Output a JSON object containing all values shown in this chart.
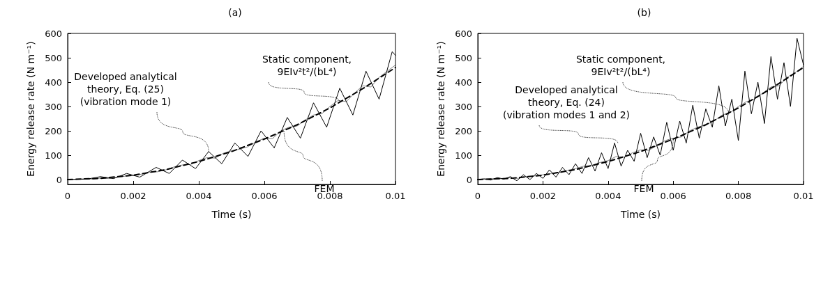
{
  "chart_data": [
    {
      "type": "line",
      "title": "(a)",
      "xlabel": "Time (s)",
      "ylabel": "Energy release rate (N m⁻¹)",
      "xlim": [
        0,
        0.01
      ],
      "xticks": [
        0,
        0.002,
        0.004,
        0.006,
        0.008,
        0.01
      ],
      "ylim": [
        -20,
        600
      ],
      "yticks": [
        0,
        100,
        200,
        300,
        400,
        500,
        600
      ],
      "grid": false,
      "marker": "none",
      "annotations": [
        {
          "text": "Static component,\n9EIv²t²/(bL⁴)",
          "x": 0.0083,
          "y": 317
        },
        {
          "text": "Developed analytical\ntheory, Eq. (25)\n(vibration mode 1)",
          "x": 0.0043,
          "y": 115
        },
        {
          "text": "FEM",
          "x": 0.0066,
          "y": 200
        }
      ],
      "series": [
        {
          "color": "#808080",
          "line_style": "solid",
          "x": [
            0,
            0.00025,
            0.0005,
            0.00075,
            0.001,
            0.00125,
            0.0015,
            0.00175,
            0.002,
            0.00225,
            0.0025,
            0.00275,
            0.003,
            0.00325,
            0.0035,
            0.00375,
            0.004,
            0.00425,
            0.0045,
            0.00475,
            0.005,
            0.00525,
            0.0055,
            0.00575,
            0.006,
            0.00625,
            0.0065,
            0.00675,
            0.007,
            0.00725,
            0.0075,
            0.00775,
            0.008,
            0.00825,
            0.0085,
            0.00875,
            0.009,
            0.00925,
            0.0095,
            0.00975,
            0.01
          ],
          "values": [
            0,
            1,
            3,
            2,
            6,
            4,
            9,
            14,
            16,
            22,
            30,
            32,
            40,
            52,
            60,
            62,
            78,
            90,
            88,
            108,
            118,
            125,
            135,
            155,
            170,
            168,
            200,
            215,
            220,
            245,
            265,
            270,
            300,
            325,
            320,
            355,
            385,
            380,
            420,
            445,
            470
          ]
        },
        {
          "color": "#000000",
          "line_style": "solid",
          "x": [
            0,
            0.0006,
            0.001,
            0.0014,
            0.0018,
            0.0022,
            0.0027,
            0.0031,
            0.0035,
            0.0039,
            0.0043,
            0.0047,
            0.0051,
            0.0055,
            0.0059,
            0.0063,
            0.0067,
            0.0071,
            0.0075,
            0.0079,
            0.0083,
            0.0087,
            0.0091,
            0.0095,
            0.0099,
            0.01
          ],
          "values": [
            0,
            2,
            12,
            4,
            25,
            10,
            50,
            25,
            80,
            45,
            115,
            65,
            150,
            95,
            200,
            130,
            255,
            170,
            315,
            215,
            375,
            265,
            445,
            330,
            525,
            510
          ]
        },
        {
          "color": "#000000",
          "line_style": "dashed",
          "x": [
            0,
            0.001,
            0.002,
            0.003,
            0.004,
            0.005,
            0.006,
            0.007,
            0.008,
            0.009,
            0.01
          ],
          "values": [
            0,
            5,
            18,
            41,
            74,
            115,
            166,
            225,
            294,
            373,
            460
          ]
        }
      ]
    },
    {
      "type": "line",
      "title": "(b)",
      "xlabel": "Time (s)",
      "ylabel": "Energy release rate (N m⁻¹)",
      "xlim": [
        0,
        0.01
      ],
      "xticks": [
        0,
        0.002,
        0.004,
        0.006,
        0.008,
        0.01
      ],
      "ylim": [
        -20,
        600
      ],
      "yticks": [
        0,
        100,
        200,
        300,
        400,
        500,
        600
      ],
      "grid": false,
      "marker": "none",
      "annotations": [
        {
          "text": "Static component,\n9EIv²t²/(bL⁴)",
          "x": 0.0077,
          "y": 273
        },
        {
          "text": "Developed analytical\ntheory, Eq. (24)\n(vibration modes 1 and 2)",
          "x": 0.0043,
          "y": 150
        },
        {
          "text": "FEM",
          "x": 0.006,
          "y": 166
        }
      ],
      "series": [
        {
          "color": "#808080",
          "line_style": "solid",
          "x": [
            0,
            0.00025,
            0.0005,
            0.00075,
            0.001,
            0.00125,
            0.0015,
            0.00175,
            0.002,
            0.00225,
            0.0025,
            0.00275,
            0.003,
            0.00325,
            0.0035,
            0.00375,
            0.004,
            0.00425,
            0.0045,
            0.00475,
            0.005,
            0.00525,
            0.0055,
            0.00575,
            0.006,
            0.00625,
            0.0065,
            0.00675,
            0.007,
            0.00725,
            0.0075,
            0.00775,
            0.008,
            0.00825,
            0.0085,
            0.00875,
            0.009,
            0.00925,
            0.0095,
            0.00975,
            0.01
          ],
          "values": [
            0,
            2,
            4,
            3,
            8,
            5,
            12,
            15,
            20,
            25,
            30,
            38,
            45,
            55,
            58,
            70,
            78,
            95,
            92,
            110,
            122,
            120,
            140,
            160,
            170,
            175,
            200,
            215,
            225,
            240,
            265,
            275,
            300,
            320,
            330,
            355,
            380,
            385,
            420,
            440,
            465
          ]
        },
        {
          "color": "#000000",
          "line_style": "solid",
          "x": [
            0,
            0.0002,
            0.0004,
            0.0006,
            0.0008,
            0.001,
            0.0012,
            0.0014,
            0.0016,
            0.0018,
            0.002,
            0.0022,
            0.0024,
            0.0026,
            0.0028,
            0.003,
            0.0032,
            0.0034,
            0.0036,
            0.0038,
            0.004,
            0.0042,
            0.0044,
            0.0046,
            0.0048,
            0.005,
            0.0052,
            0.0054,
            0.0056,
            0.0058,
            0.006,
            0.0062,
            0.0064,
            0.0066,
            0.0068,
            0.007,
            0.0072,
            0.0074,
            0.0076,
            0.0078,
            0.008,
            0.0082,
            0.0084,
            0.0086,
            0.0088,
            0.009,
            0.0092,
            0.0094,
            0.0096,
            0.0098,
            0.01
          ],
          "values": [
            0,
            3,
            -2,
            8,
            2,
            12,
            -5,
            20,
            0,
            25,
            5,
            40,
            10,
            50,
            20,
            65,
            25,
            90,
            35,
            110,
            45,
            150,
            55,
            120,
            75,
            190,
            90,
            175,
            100,
            235,
            120,
            240,
            150,
            305,
            170,
            290,
            215,
            385,
            220,
            330,
            160,
            445,
            270,
            400,
            230,
            505,
            330,
            480,
            300,
            580,
            470
          ]
        },
        {
          "color": "#000000",
          "line_style": "dashed",
          "x": [
            0,
            0.001,
            0.002,
            0.003,
            0.004,
            0.005,
            0.006,
            0.007,
            0.008,
            0.009,
            0.01
          ],
          "values": [
            0,
            5,
            18,
            41,
            74,
            115,
            166,
            225,
            294,
            373,
            460
          ]
        }
      ]
    }
  ]
}
